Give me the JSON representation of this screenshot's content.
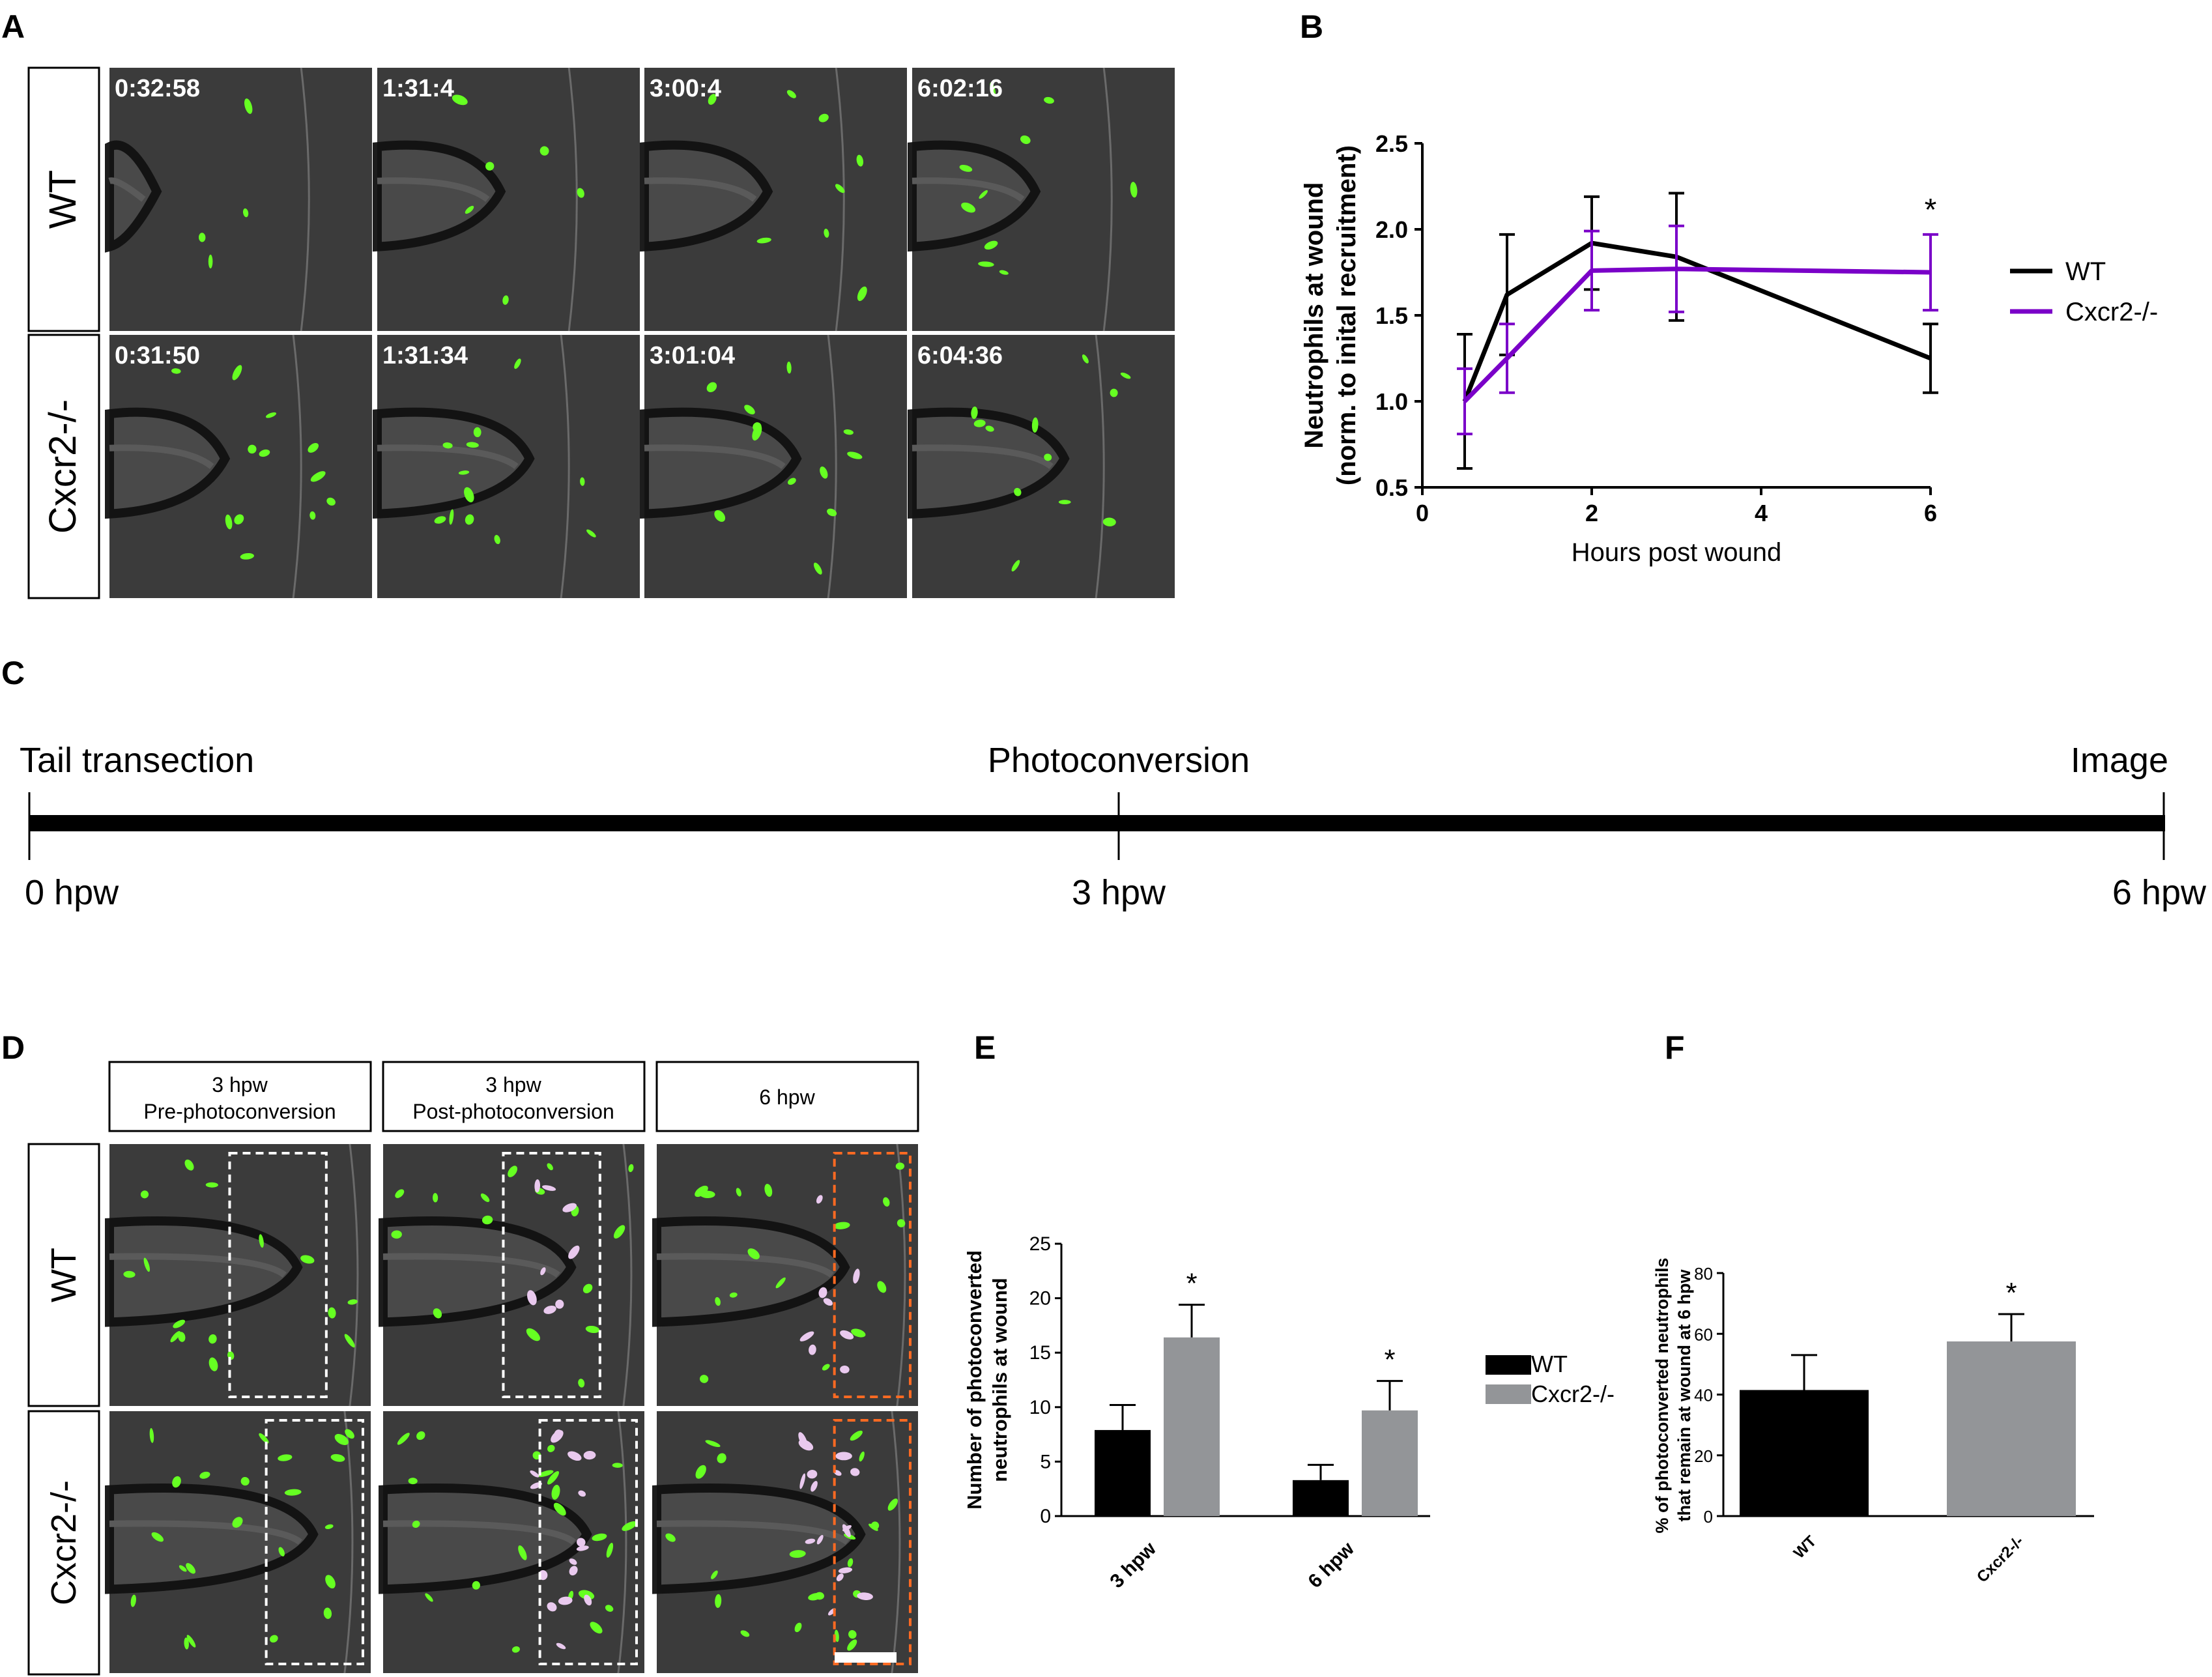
{
  "panel_letters": {
    "a": "A",
    "b": "B",
    "c": "C",
    "d": "D",
    "e": "E",
    "f": "F"
  },
  "panel_a": {
    "row_labels": [
      "WT",
      "Cxcr2-/-"
    ],
    "timestamps": [
      [
        "0:32:58",
        "1:31:4",
        "3:00:4",
        "6:02:16"
      ],
      [
        "0:31:50",
        "1:31:34",
        "3:01:04",
        "6:04:36"
      ]
    ]
  },
  "panel_c": {
    "events": [
      "Tail transection",
      "Photoconversion",
      "Image"
    ],
    "ticks": [
      "0 hpw",
      "3 hpw",
      "6 hpw"
    ]
  },
  "panel_d": {
    "column_headers": [
      {
        "line1": "3 hpw",
        "line2": "Pre-photoconversion"
      },
      {
        "line1": "3 hpw",
        "line2": "Post-photoconversion"
      },
      {
        "line1": "6 hpw",
        "line2": ""
      }
    ],
    "row_labels": [
      "WT",
      "Cxcr2-/-"
    ]
  },
  "colors": {
    "wt": "#000000",
    "cxcr2": "#7a00c8",
    "cxcr2_bar": "#939598",
    "image_bg": "#3b3b3b",
    "neutrophil_green": "#66ff22",
    "photoconverted": "#e9c9ee",
    "roi_white": "#ffffff",
    "roi_orange": "#ff6a22"
  },
  "chart_data": [
    {
      "panel": "B",
      "type": "line",
      "xlabel": "Hours post wound",
      "ylabel_line1": "Neutrophils at wound",
      "ylabel_line2": "(norm. to inital recruitment)",
      "xlim": [
        0,
        6
      ],
      "ylim": [
        0.5,
        2.5
      ],
      "xticks": [
        "0",
        "2",
        "4",
        "6"
      ],
      "yticks": [
        "0.5",
        "1.0",
        "1.5",
        "2.0",
        "2.5"
      ],
      "legend": "right",
      "series": [
        {
          "name": "WT",
          "x": [
            0.5,
            1,
            2,
            3,
            6
          ],
          "y": [
            1.0,
            1.62,
            1.92,
            1.84,
            1.25
          ],
          "err": [
            0.39,
            0.35,
            0.27,
            0.37,
            0.2
          ]
        },
        {
          "name": "Cxcr2-/-",
          "x": [
            0.5,
            1,
            2,
            3,
            6
          ],
          "y": [
            1.0,
            1.25,
            1.76,
            1.77,
            1.75
          ],
          "err": [
            0.19,
            0.2,
            0.23,
            0.25,
            0.22
          ]
        }
      ],
      "annotations": [
        {
          "text": "*",
          "x": 6
        }
      ]
    },
    {
      "panel": "E",
      "type": "bar",
      "ylabel_line1": "Number of photoconverted",
      "ylabel_line2": "neutrophils at wound",
      "categories": [
        "3 hpw",
        "6 hpw"
      ],
      "ylim": [
        0,
        25
      ],
      "yticks": [
        "0",
        "5",
        "10",
        "15",
        "20",
        "25"
      ],
      "legend": "right",
      "series": [
        {
          "name": "WT",
          "values": [
            7.9,
            3.3
          ],
          "err": [
            2.3,
            1.4
          ]
        },
        {
          "name": "Cxcr2-/-",
          "values": [
            16.4,
            9.7
          ],
          "err": [
            3.0,
            2.7
          ]
        }
      ],
      "annotations": [
        "*",
        "*"
      ]
    },
    {
      "panel": "F",
      "type": "bar",
      "ylabel_line1": "% of photoconverted neutrophils",
      "ylabel_line2": "that remain at wound at 6 hpw",
      "categories": [
        "WT",
        "Cxcr2-/-"
      ],
      "values": [
        41.5,
        57.5
      ],
      "err": [
        11.5,
        9.0
      ],
      "ylim": [
        0,
        80
      ],
      "yticks": [
        "0",
        "20",
        "40",
        "60",
        "80"
      ],
      "annotations": [
        "*"
      ]
    }
  ]
}
